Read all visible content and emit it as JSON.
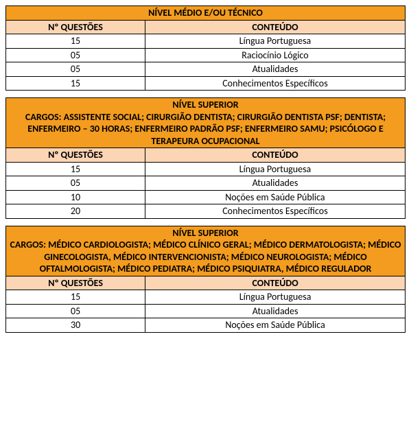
{
  "colors": {
    "orange": "#f39c1f",
    "peach": "#fcd5b4",
    "border": "#000000",
    "bg": "#ffffff",
    "text": "#000000"
  },
  "labels": {
    "col_questoes": "Nº QUESTÕES",
    "col_conteudo": "CONTEÚDO"
  },
  "table1": {
    "title": "NÍVEL MÉDIO E/OU TÉCNICO",
    "rows": [
      {
        "q": "15",
        "c": "Língua Portuguesa"
      },
      {
        "q": "05",
        "c": "Raciocínio Lógico"
      },
      {
        "q": "05",
        "c": "Atualidades"
      },
      {
        "q": "15",
        "c": "Conhecimentos Específicos"
      }
    ]
  },
  "table2": {
    "title_l1": "NÍVEL SUPERIOR",
    "title_l2": "CARGOS:  ASSISTENTE SOCIAL; CIRURGIÃO DENTISTA; CIRURGIÃO DENTISTA PSF; DENTISTA; ENFERMEIRO – 30 HORAS;  ENFERMEIRO PADRÃO PSF; ENFERMEIRO SAMU; PSICÓLOGO E TERAPEURA OCUPACIONAL",
    "rows": [
      {
        "q": "15",
        "c": "Língua Portuguesa"
      },
      {
        "q": "05",
        "c": "Atualidades"
      },
      {
        "q": "10",
        "c": "Noções em Saúde Pública"
      },
      {
        "q": "20",
        "c": "Conhecimentos Específicos"
      }
    ]
  },
  "table3": {
    "title_l1": "NÍVEL SUPERIOR",
    "title_l2": "CARGOS: MÉDICO CARDIOLOGISTA; MÉDICO CLÍNICO GERAL; MÉDICO DERMATOLOGISTA; MÉDICO GINECOLOGISTA, MÉDICO INTERVENCIONISTA; MÉDICO NEUROLOGISTA; MÉDICO OFTALMOLOGISTA; MÉDICO PEDIATRA; MÉDICO PSIQUIATRA, MÉDICO REGULADOR",
    "rows": [
      {
        "q": "15",
        "c": "Língua Portuguesa"
      },
      {
        "q": "05",
        "c": "Atualidades"
      },
      {
        "q": "30",
        "c": "Noções em Saúde Pública"
      }
    ]
  }
}
